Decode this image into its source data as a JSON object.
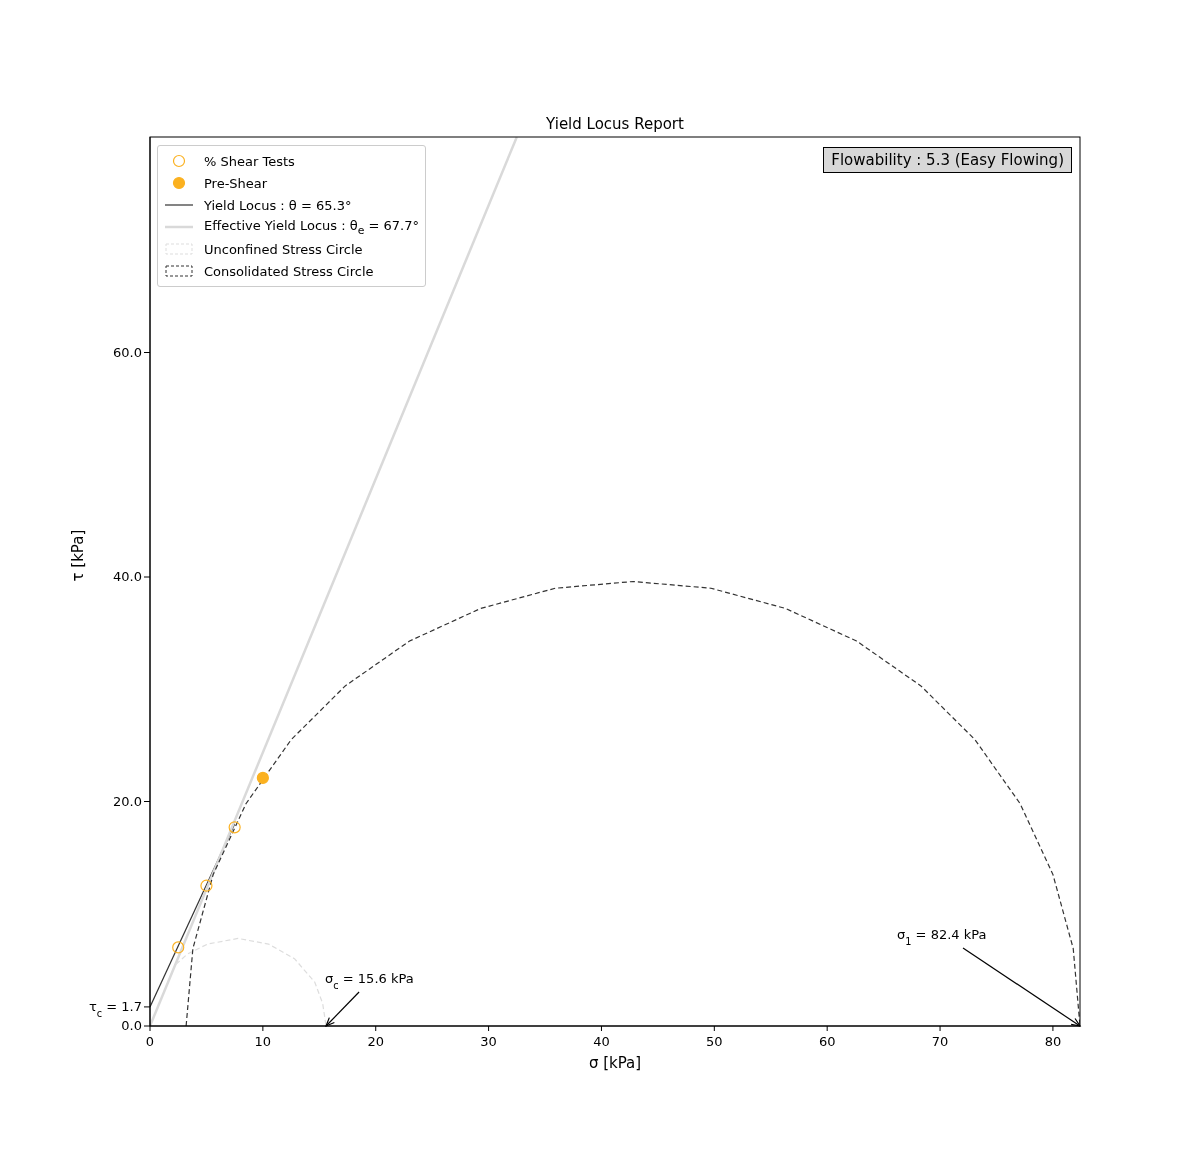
{
  "chart_data": {
    "type": "scatter",
    "title": "Yield Locus Report",
    "xlabel": "σ [kPa]",
    "ylabel": "τ [kPa]",
    "xlim": [
      0,
      82.4
    ],
    "ylim": [
      0,
      79.2
    ],
    "xticks": [
      0,
      10,
      20,
      30,
      40,
      50,
      60,
      70,
      80
    ],
    "yticks": [
      {
        "value": 0,
        "label": "0.0"
      },
      {
        "value": 1.7,
        "label": "τ$_{c}$ = 1.7"
      },
      {
        "value": 20,
        "label": "20.0"
      },
      {
        "value": 40,
        "label": "40.0"
      },
      {
        "value": 60,
        "label": "60.0"
      }
    ],
    "grid": false,
    "legend": "top left",
    "series": [
      {
        "name": "% Shear Tests",
        "marker": "circle",
        "color": "#fbb120",
        "x": [
          2.5,
          5,
          7.5
        ],
        "values": [
          7.0,
          12.5,
          17.7
        ]
      },
      {
        "name": "Pre-Shear",
        "marker": "circle",
        "color": "#fbb120",
        "x": [
          10
        ],
        "values": [
          22.1
        ]
      },
      {
        "name": "Yield Locus : θ = 65.3°",
        "type": "line",
        "color": "#333333",
        "line_style": "solid",
        "x": [
          0,
          7.5
        ],
        "values": [
          1.7,
          18.0
        ]
      },
      {
        "name": "Effective Yield Locus : θ$_{e}$ = 67.7°",
        "type": "line",
        "color": "#d9d9d9",
        "line_style": "solid",
        "x": [
          0,
          32.5
        ],
        "values": [
          0,
          79.2
        ]
      },
      {
        "name": "Unconfined Stress Circle",
        "type": "line",
        "color": "#dddddd",
        "line_style": "dashed",
        "x": [
          2.3,
          3.3,
          5.1,
          7.8,
          10.5,
          12.8,
          14.6,
          15.3,
          15.6
        ],
        "values": [
          5.5,
          6.4,
          7.3,
          7.8,
          7.3,
          6.0,
          3.9,
          2.0,
          0
        ]
      },
      {
        "name": "Consolidated Stress Circle",
        "type": "line",
        "color": "#333333",
        "line_style": "dashed",
        "x": [
          3.2,
          3.8,
          5.6,
          8.5,
          12.5,
          17.3,
          23.0,
          29.3,
          35.9,
          42.8,
          49.7,
          56.3,
          62.6,
          68.3,
          73.1,
          77.1,
          80.0,
          81.8,
          82.4
        ],
        "values": [
          0,
          6.9,
          13.5,
          19.8,
          25.5,
          30.3,
          34.3,
          37.2,
          39.0,
          39.6,
          39.0,
          37.2,
          34.3,
          30.3,
          25.5,
          19.8,
          13.5,
          6.9,
          0
        ]
      }
    ],
    "annotations": [
      {
        "text": "σ$_{c}$ = 15.6 kPa",
        "x": 15.6,
        "y": 0
      },
      {
        "text": "σ$_{1}$ = 82.4 kPa",
        "x": 82.4,
        "y": 0
      },
      "Flowability : 5.3 (Easy Flowing)"
    ]
  }
}
